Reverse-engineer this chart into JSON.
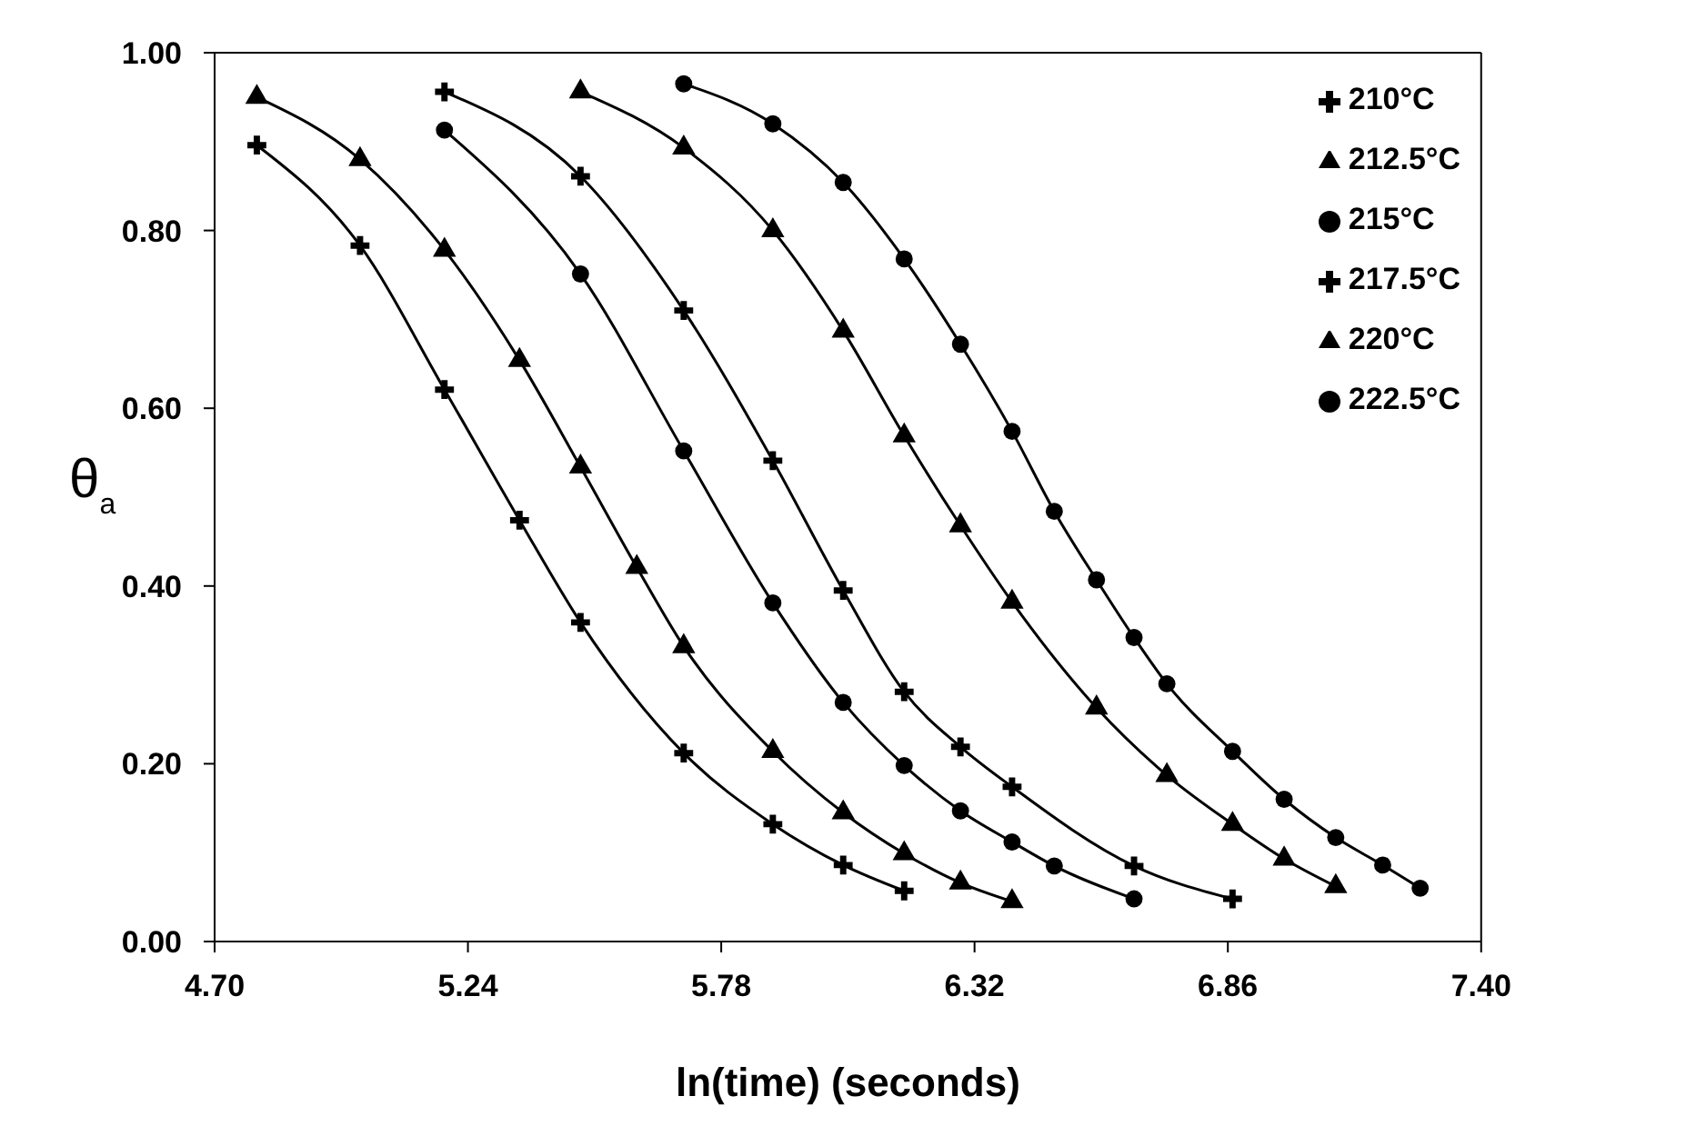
{
  "chart_data": {
    "type": "line",
    "xlabel": "ln(time)  (seconds)",
    "ylabel": "θ$_{a}$",
    "xlim": [
      4.7,
      7.4
    ],
    "xticks": [
      {
        "value": 4.7,
        "label": "4.70"
      },
      5.24,
      5.78,
      6.32,
      6.86,
      {
        "value": 7.4,
        "label": "7.40"
      }
    ],
    "ylim": [
      0,
      1
    ],
    "yticks": [
      {
        "value": 0,
        "label": "0.00"
      },
      {
        "value": 0.2,
        "label": "0.20"
      },
      {
        "value": 0.4,
        "label": "0.40"
      },
      {
        "value": 0.6,
        "label": "0.60"
      },
      {
        "value": 0.8,
        "label": "0.80"
      },
      {
        "value": 1,
        "label": "1.00"
      }
    ],
    "grid": false,
    "legend": "top right",
    "line_style": "solid",
    "series": [
      {
        "name": "210°C",
        "color": "#000000",
        "marker": "cross",
        "x": [
          4.79,
          5.01,
          5.19,
          5.35,
          5.48,
          5.7,
          5.89,
          6.04,
          6.17
        ],
        "values": [
          0.896,
          0.783,
          0.621,
          0.474,
          0.359,
          0.212,
          0.132,
          0.086,
          0.057
        ]
      },
      {
        "name": "212.5°C",
        "color": "#000000",
        "marker": "triangle",
        "x": [
          4.79,
          5.01,
          5.19,
          5.35,
          5.48,
          5.6,
          5.7,
          5.89,
          6.04,
          6.17,
          6.29,
          6.4
        ],
        "values": [
          0.95,
          0.88,
          0.778,
          0.654,
          0.534,
          0.421,
          0.332,
          0.214,
          0.145,
          0.099,
          0.066,
          0.045
        ]
      },
      {
        "name": "215°C",
        "color": "#000000",
        "marker": "circle",
        "x": [
          5.19,
          5.48,
          5.7,
          5.89,
          6.04,
          6.17,
          6.29,
          6.4,
          6.49,
          6.66
        ],
        "values": [
          0.913,
          0.751,
          0.552,
          0.381,
          0.269,
          0.198,
          0.147,
          0.112,
          0.085,
          0.048
        ]
      },
      {
        "name": "217.5°C",
        "color": "#000000",
        "marker": "cross",
        "x": [
          5.19,
          5.48,
          5.7,
          5.89,
          6.04,
          6.17,
          6.29,
          6.4,
          6.66,
          6.87
        ],
        "values": [
          0.956,
          0.861,
          0.71,
          0.541,
          0.395,
          0.281,
          0.219,
          0.174,
          0.085,
          0.048
        ]
      },
      {
        "name": "220°C",
        "color": "#000000",
        "marker": "triangle",
        "x": [
          5.48,
          5.7,
          5.89,
          6.04,
          6.17,
          6.29,
          6.4,
          6.58,
          6.73,
          6.87,
          6.98,
          7.09
        ],
        "values": [
          0.956,
          0.893,
          0.8,
          0.687,
          0.569,
          0.468,
          0.382,
          0.263,
          0.187,
          0.132,
          0.093,
          0.062
        ]
      },
      {
        "name": "222.5°C",
        "color": "#000000",
        "marker": "circle",
        "x": [
          5.7,
          5.89,
          6.04,
          6.17,
          6.29,
          6.4,
          6.49,
          6.58,
          6.66,
          6.73,
          6.87,
          6.98,
          7.09,
          7.19,
          7.27
        ],
        "values": [
          0.965,
          0.92,
          0.854,
          0.768,
          0.672,
          0.574,
          0.484,
          0.407,
          0.342,
          0.29,
          0.214,
          0.16,
          0.117,
          0.086,
          0.06
        ]
      }
    ]
  }
}
